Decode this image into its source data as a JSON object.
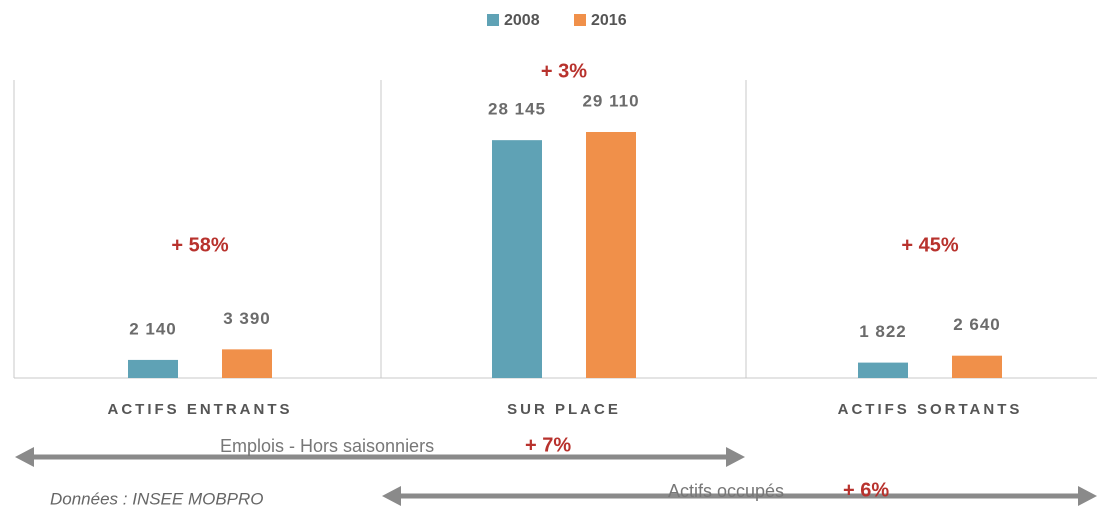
{
  "chart_data": {
    "type": "bar",
    "categories": [
      "ACTIFS ENTRANTS",
      "SUR PLACE",
      "ACTIFS SORTANTS"
    ],
    "series": [
      {
        "name": "2008",
        "color": "#5fa2b5",
        "values": [
          2140,
          28145,
          1822
        ],
        "value_labels": [
          "2 140",
          "28 145",
          "1 822"
        ]
      },
      {
        "name": "2016",
        "color": "#f0904a",
        "values": [
          3390,
          29110,
          2640
        ],
        "value_labels": [
          "3 390",
          "29 110",
          "2 640"
        ]
      }
    ],
    "annotations": [
      "+ 58%",
      "+ 3%",
      "+ 45%"
    ],
    "arrows": [
      {
        "label": "Emplois - Hors saisonniers",
        "change": "+ 7%"
      },
      {
        "label": "Actifs occupés",
        "change": "+ 6%"
      }
    ],
    "source": "Données : INSEE MOBPRO"
  }
}
